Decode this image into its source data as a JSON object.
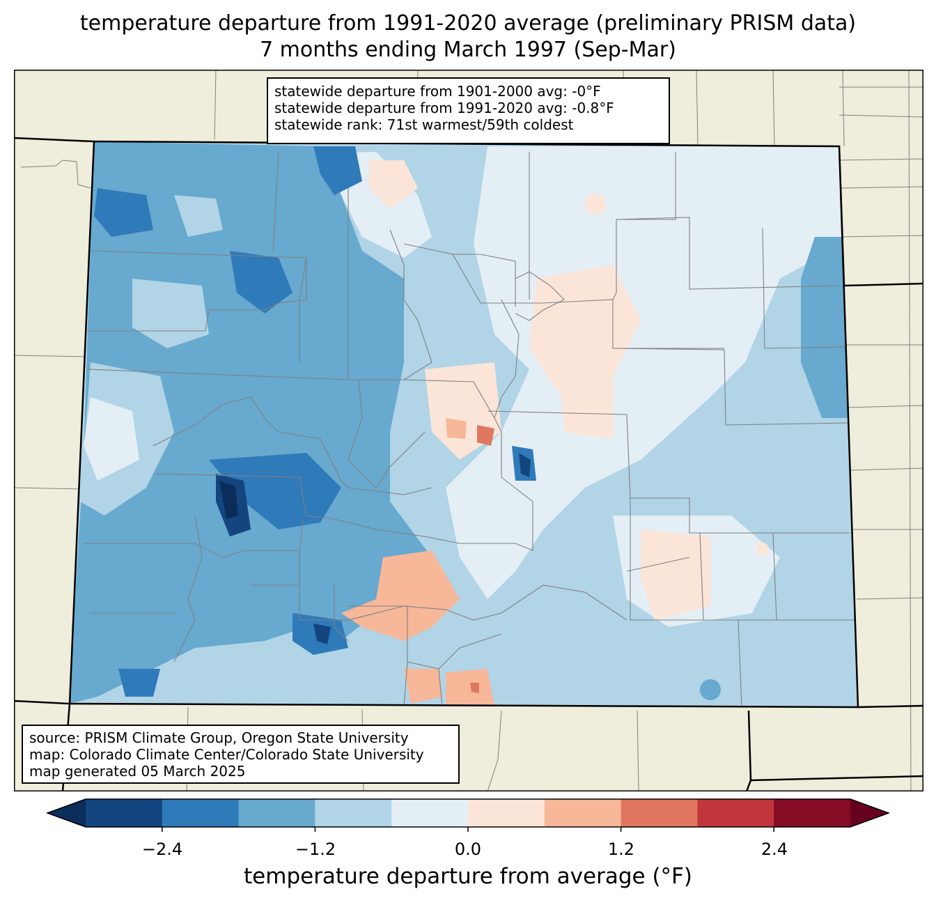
{
  "title": {
    "line1": "temperature departure from 1991-2020 average (preliminary PRISM data)",
    "line2": "7 months ending March 1997 (Sep-Mar)"
  },
  "stats": {
    "line1": "statewide departure from 1901-2000 avg: -0°F",
    "line2": "statewide departure from 1991-2020 avg: -0.8°F",
    "line3": "statewide rank: 71st warmest/59th coldest"
  },
  "source": {
    "line1": "source: PRISM Climate Group, Oregon State University",
    "line2": "map: Colorado Climate Center/Colorado State University",
    "line3": "map generated 05 March 2025"
  },
  "colorbar": {
    "label": "temperature departure from average (°F)",
    "ticks": [
      "−2.4",
      "−1.2",
      "0.0",
      "1.2",
      "2.4"
    ],
    "tick_values": [
      -2.4,
      -1.2,
      0.0,
      1.2,
      2.4
    ],
    "range": [
      -3.0,
      3.0
    ],
    "step": 0.6,
    "colors": [
      "#14457f",
      "#2f7ab9",
      "#67a9cf",
      "#b1d4e7",
      "#e4eef5",
      "#fbe5d9",
      "#f7b799",
      "#e0775e",
      "#c0363c",
      "#850c25"
    ],
    "under_color": "#0a2d5c",
    "over_color": "#67001f"
  },
  "colors": {
    "land": "#efeddb",
    "state_border": "#000000",
    "county_border": "#808080"
  }
}
